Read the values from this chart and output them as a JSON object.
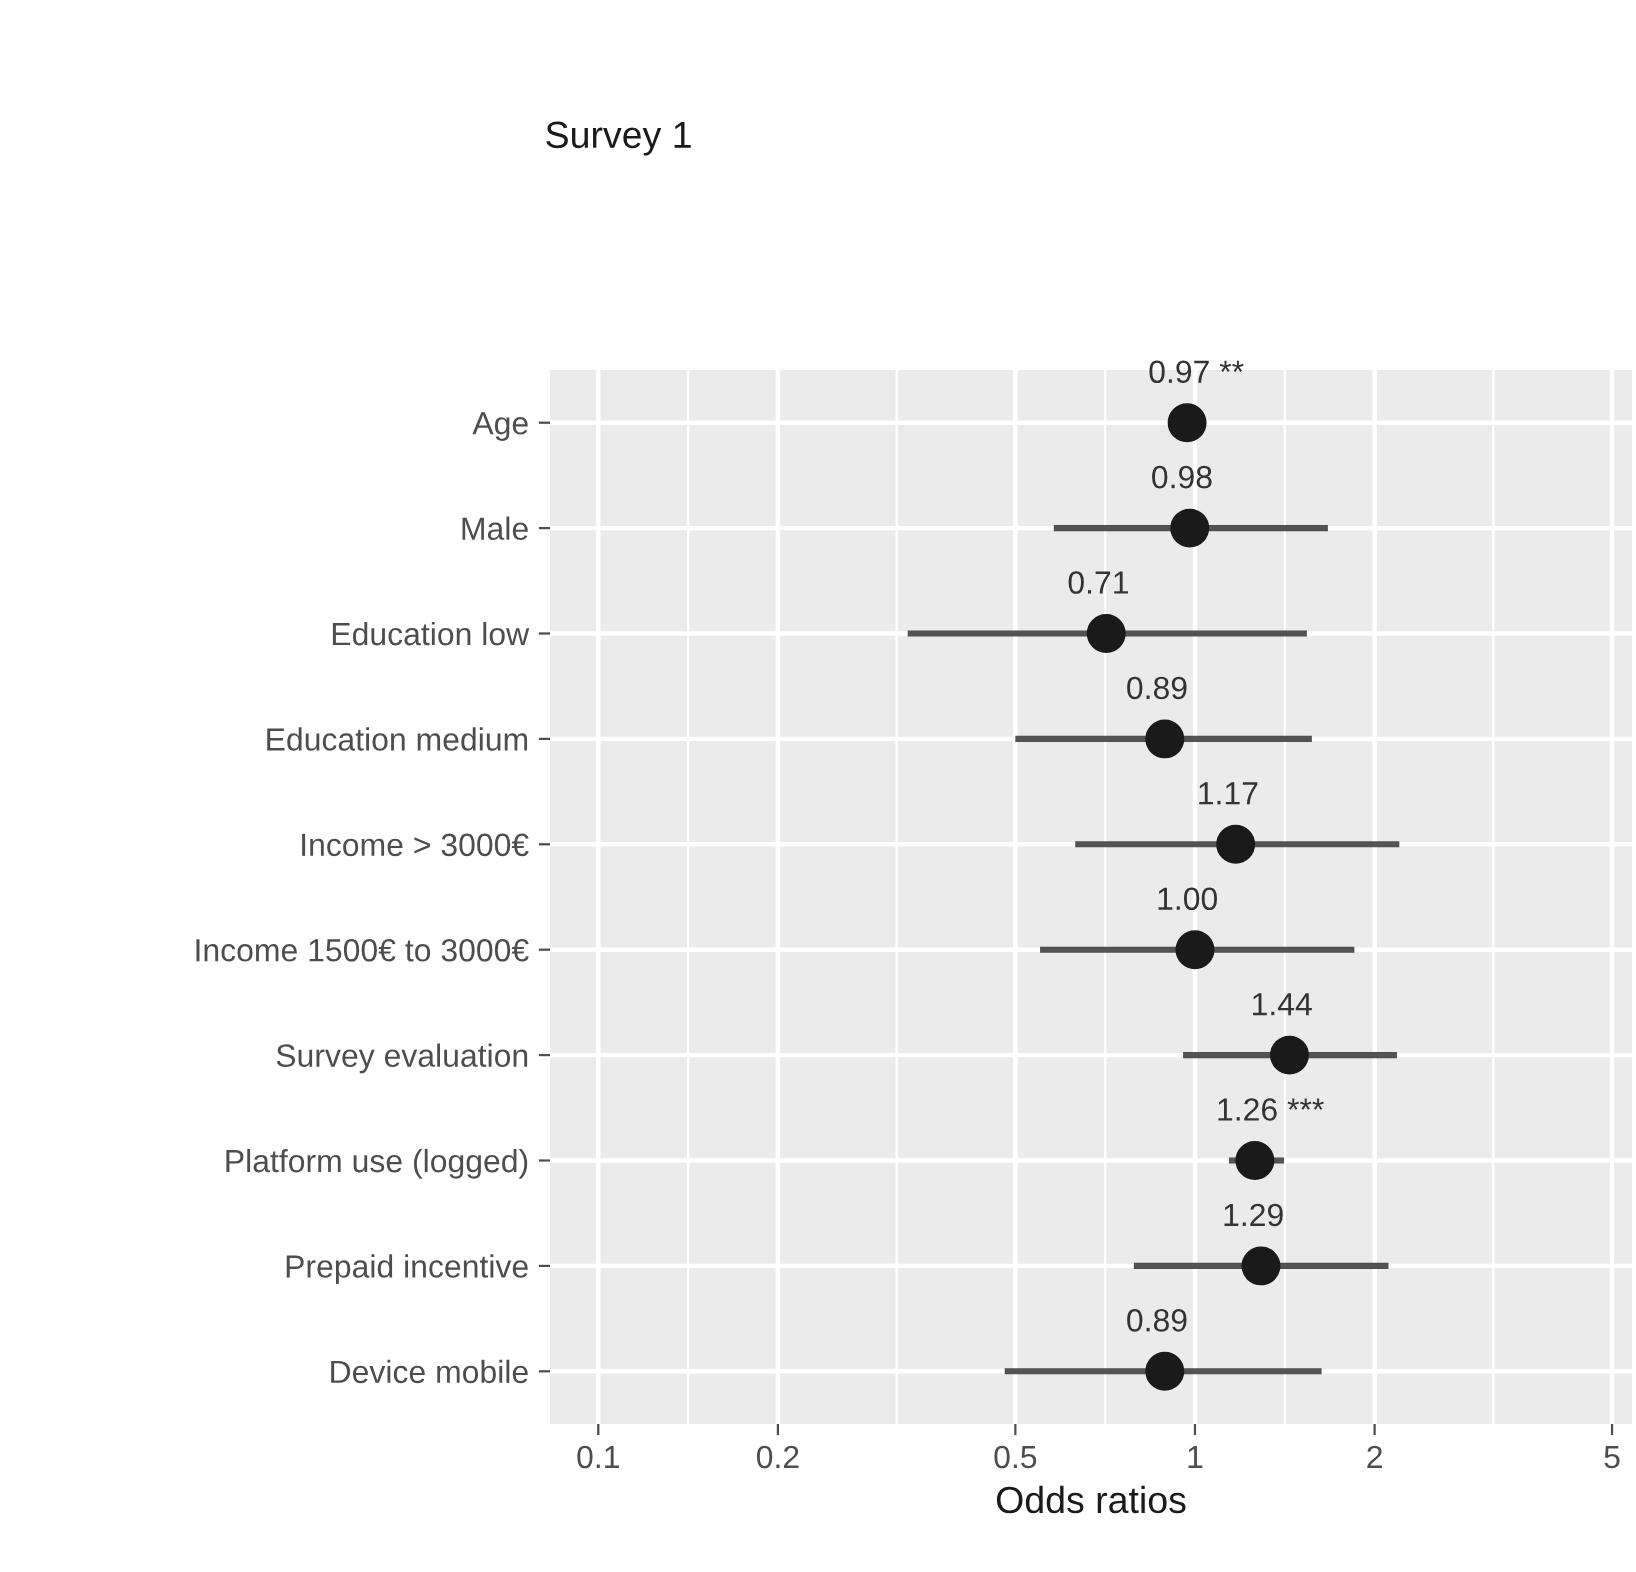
{
  "chart_data": {
    "type": "scatter",
    "orientation": "horizontal",
    "title": "Survey 1",
    "xlabel": "Odds ratios",
    "categories": [
      "Age",
      "Male",
      "Education low",
      "Education medium",
      "Income > 3000€",
      "Income 1500€ to 3000€",
      "Survey evaluation",
      "Platform use (logged)",
      "Prepaid incentive",
      "Device mobile"
    ],
    "values": [
      0.97,
      0.98,
      0.71,
      0.89,
      1.17,
      1.0,
      1.44,
      1.26,
      1.29,
      0.89
    ],
    "value_labels": [
      "0.97 **",
      "0.98",
      "0.71",
      "0.89",
      "1.17",
      "1.00",
      "1.44",
      "1.26 ***",
      "1.29",
      "0.89"
    ],
    "errors": [
      null,
      [
        0.58,
        1.67
      ],
      [
        0.33,
        1.54
      ],
      [
        0.5,
        1.57
      ],
      [
        0.63,
        2.2
      ],
      [
        0.55,
        1.85
      ],
      [
        0.955,
        2.18
      ],
      [
        1.14,
        1.41
      ],
      [
        0.79,
        2.11
      ],
      [
        0.48,
        1.63
      ]
    ],
    "color": "#1a1a1a",
    "marker": "circle",
    "log": "x",
    "grid": true,
    "xlim": [
      0.083,
      5.4
    ],
    "xticks": [
      0.1,
      0.2,
      0.5,
      1,
      2,
      5
    ]
  }
}
